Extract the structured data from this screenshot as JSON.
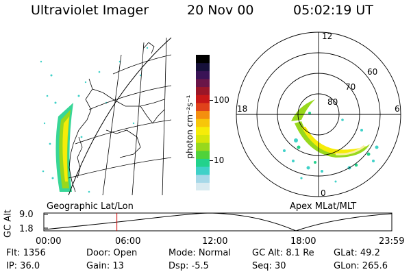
{
  "header": {
    "title": "Ultraviolet Imager",
    "date": "20 Nov 00",
    "time": "05:02:19 UT"
  },
  "colorbar": {
    "label": "photon cm⁻²s⁻¹",
    "ticks": [
      "100",
      "10"
    ],
    "colors": [
      "#d8eaf0",
      "#a6d8e8",
      "#3fd1c8",
      "#22d28c",
      "#4fd23a",
      "#98d81c",
      "#d6e60a",
      "#f6ec08",
      "#f7c60a",
      "#f48f0f",
      "#e0421a",
      "#c81818",
      "#9a1628",
      "#6a1548",
      "#3a1356",
      "#16103a",
      "#000000"
    ]
  },
  "polar": {
    "lat_labels": [
      "80",
      "70",
      "60"
    ],
    "mlt_labels": [
      "12",
      "18",
      "6",
      "0"
    ]
  },
  "labels": {
    "geographic": "Geographic Lat/Lon",
    "apex": "Apex MLat/MLT"
  },
  "timeline": {
    "ylabel": "GC Alt",
    "yticks": [
      "9.0",
      "1.8"
    ],
    "xticks": [
      "00:00",
      "06:00",
      "12:00",
      "18:00",
      "23:59"
    ],
    "marker_fraction": 0.2099
  },
  "footer": {
    "flt": "Flt: 1356",
    "door": "Door: Open",
    "mode": "Mode: Normal",
    "gcalt": "GC Alt: 8.1 Re",
    "glat": "GLat:  49.2",
    "ip": "IP: 36.0",
    "gain": "Gain: 13",
    "dsp": "Dsp:   -5.5",
    "seq": "Seq: 30",
    "glon": "GLon: 265.6"
  },
  "accent": {
    "marker": "#d00000",
    "aurora_core": "#f6ec08",
    "aurora_edge": "#22d28c"
  }
}
